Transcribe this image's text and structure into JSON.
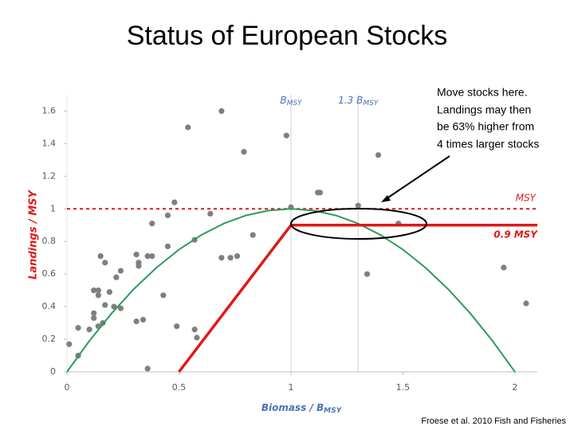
{
  "chart_data": {
    "type": "scatter",
    "title": "Status of European Stocks",
    "annotation": [
      "Move stocks here.",
      "Landings may then",
      "be 63% higher from",
      "4 times larger stocks"
    ],
    "source": "Froese et al. 2010 Fish and Fisheries",
    "x_label": "Biomass / B",
    "x_label_sub": "MSY",
    "y_label": "Landings / MSY",
    "xlim": [
      0,
      2.1
    ],
    "xticks": [
      0,
      0.5,
      1,
      1.5,
      2
    ],
    "ylim": [
      0,
      1.7
    ],
    "yticks": [
      0,
      0.2,
      0.4,
      0.6,
      0.8,
      1,
      1.2,
      1.4,
      1.6
    ],
    "grid": false,
    "reference_lines": [
      {
        "axis": "x",
        "value": 1,
        "color": "#d9d9d9",
        "dash": false,
        "label": "B",
        "label_sub": "MSY",
        "label_color": "#4a72b8"
      },
      {
        "axis": "x",
        "value": 1.3,
        "color": "#d9d9d9",
        "dash": false,
        "label": "1.3 B",
        "label_sub": "MSY",
        "label_color": "#4a72b8"
      },
      {
        "axis": "y",
        "value": 1,
        "color": "#e01818",
        "dash": true,
        "label": "MSY",
        "label_color": "#e01818"
      }
    ],
    "series": [
      {
        "type": "scatter",
        "color": "#7f7f7f",
        "x": [
          0.01,
          0.05,
          0.05,
          0.1,
          0.12,
          0.12,
          0.12,
          0.14,
          0.14,
          0.14,
          0.15,
          0.16,
          0.17,
          0.17,
          0.19,
          0.21,
          0.22,
          0.24,
          0.24,
          0.31,
          0.31,
          0.32,
          0.32,
          0.34,
          0.36,
          0.36,
          0.38,
          0.38,
          0.43,
          0.45,
          0.45,
          0.48,
          0.49,
          0.54,
          0.57,
          0.57,
          0.58,
          0.64,
          0.69,
          0.69,
          0.73,
          0.76,
          0.79,
          0.83,
          0.98,
          1.0,
          1.12,
          1.13,
          1.3,
          1.34,
          1.39,
          1.48,
          1.95,
          2.05
        ],
        "values": [
          0.17,
          0.1,
          0.27,
          0.26,
          0.36,
          0.33,
          0.5,
          0.5,
          0.47,
          0.28,
          0.71,
          0.3,
          0.41,
          0.67,
          0.49,
          0.4,
          0.58,
          0.62,
          0.39,
          0.31,
          0.72,
          0.67,
          0.65,
          0.32,
          0.02,
          0.71,
          0.71,
          0.91,
          0.47,
          0.96,
          0.77,
          1.04,
          0.28,
          1.5,
          0.26,
          0.81,
          0.21,
          0.97,
          1.6,
          0.7,
          0.7,
          0.71,
          1.35,
          0.84,
          1.45,
          1.01,
          1.1,
          1.1,
          1.02,
          0.6,
          1.33,
          0.91,
          0.64,
          0.42
        ]
      },
      {
        "type": "line",
        "color": "#2e9a5c",
        "width": 2,
        "x": [
          0,
          0.1,
          0.2,
          0.3,
          0.4,
          0.5,
          0.6,
          0.7,
          0.8,
          0.9,
          1,
          1.1,
          1.2,
          1.3,
          1.4,
          1.5,
          1.6,
          1.7,
          1.8,
          1.9,
          2
        ],
        "values": [
          0,
          0.19,
          0.36,
          0.51,
          0.64,
          0.75,
          0.84,
          0.91,
          0.96,
          0.99,
          1,
          0.99,
          0.96,
          0.91,
          0.84,
          0.75,
          0.64,
          0.51,
          0.36,
          0.19,
          0
        ]
      },
      {
        "type": "line",
        "color": "#e01818",
        "width": 3.5,
        "label": "0.9 MSY",
        "x": [
          0.5,
          1,
          2.1
        ],
        "values": [
          0,
          0.9,
          0.9
        ]
      }
    ]
  }
}
